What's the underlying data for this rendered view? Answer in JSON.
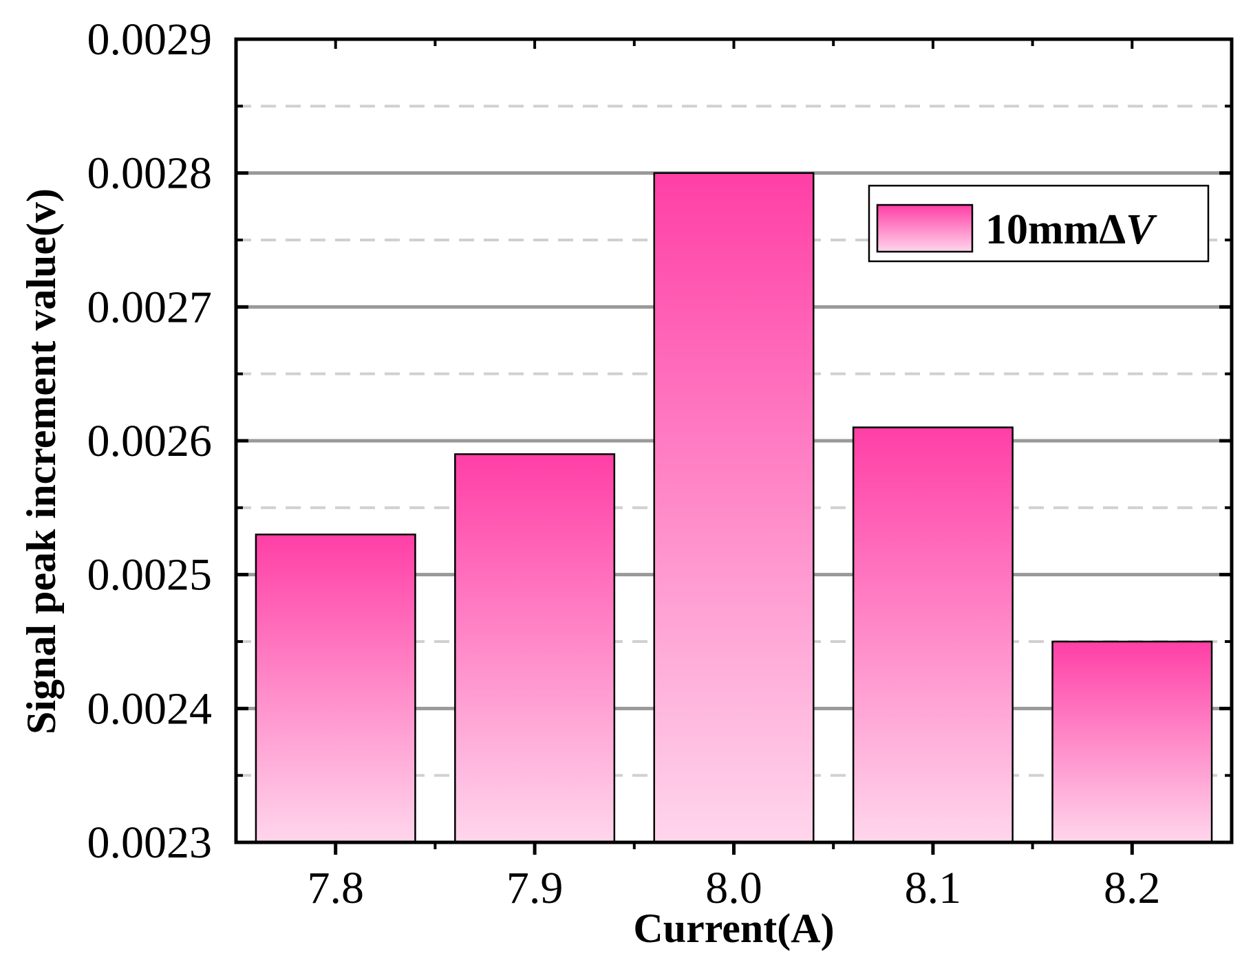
{
  "chart_data": {
    "type": "bar",
    "categories": [
      "7.8",
      "7.9",
      "8.0",
      "8.1",
      "8.2"
    ],
    "series": [
      {
        "name": "10mmΔV",
        "values": [
          0.00253,
          0.00259,
          0.0028,
          0.00261,
          0.00245
        ]
      }
    ],
    "xlabel": "Current(A)",
    "ylabel": "Signal peak increment value(v)",
    "ylim": [
      0.0023,
      0.0029
    ],
    "yticks": [
      "0.0023",
      "0.0024",
      "0.0025",
      "0.0026",
      "0.0027",
      "0.0028",
      "0.0029"
    ],
    "grid": {
      "major": true,
      "minor_dashed": true
    },
    "legend": {
      "position": "top-right",
      "label_main": "10mmΔ",
      "label_italic": "V"
    },
    "colors": {
      "bar_top": "#ff3fa6",
      "bar_bottom": "#ffd6ec",
      "major_grid": "#999999",
      "minor_grid": "#d0d0d0",
      "axis": "#000000"
    }
  }
}
